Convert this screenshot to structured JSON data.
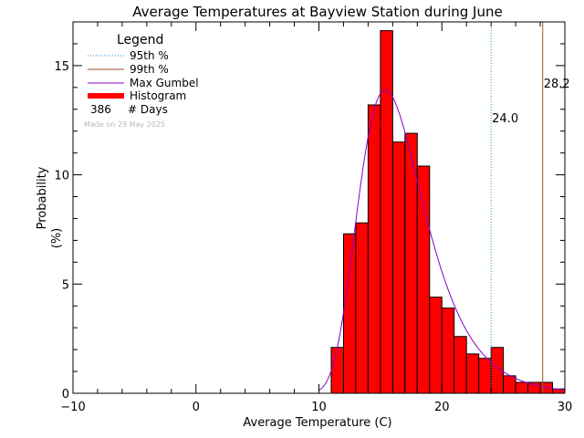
{
  "chart_data": {
    "type": "bar",
    "title": "Average Temperatures at Bayview Station during June",
    "xlabel": "Average Temperature (C)",
    "ylabel_line1": "Probability",
    "ylabel_line2": "(%)",
    "xlim": [
      -10,
      30
    ],
    "ylim": [
      0,
      17
    ],
    "xticks": [
      -10,
      0,
      10,
      20,
      30
    ],
    "yticks": [
      0,
      5,
      10,
      15
    ],
    "legend": {
      "title": "Legend",
      "items": [
        {
          "label": "95th %",
          "style": "dotted",
          "color": "#1f8fd8"
        },
        {
          "label": "99th %",
          "style": "solid",
          "color": "#a0522d"
        },
        {
          "label": "Max Gumbel",
          "style": "solid",
          "color": "#8a00c8"
        },
        {
          "label": "Histogram",
          "style": "thick",
          "color": "#ff0000"
        }
      ],
      "days_count": "386",
      "days_label": "# Days",
      "made_on": "Made on 29 May 2025",
      "placement": "top-left"
    },
    "histogram": {
      "bin_width": 1,
      "bin_starts": [
        11,
        12,
        13,
        14,
        15,
        16,
        17,
        18,
        19,
        20,
        21,
        22,
        23,
        24,
        25,
        26,
        27,
        28,
        29
      ],
      "values": [
        2.1,
        7.3,
        7.8,
        13.2,
        16.6,
        11.5,
        11.9,
        10.4,
        4.4,
        3.9,
        2.6,
        1.8,
        1.6,
        2.1,
        0.8,
        0.5,
        0.5,
        0.5,
        0.2
      ],
      "color": "#ff0000"
    },
    "gumbel": {
      "mu": 15.4,
      "beta": 2.65,
      "x_range": [
        10,
        30
      ],
      "color": "#8a00c8"
    },
    "p95": {
      "value": 24.0,
      "label": "24.0",
      "color": "#1f8fd8"
    },
    "p99": {
      "value": 28.2,
      "label": "28.2",
      "color": "#a0522d"
    }
  }
}
